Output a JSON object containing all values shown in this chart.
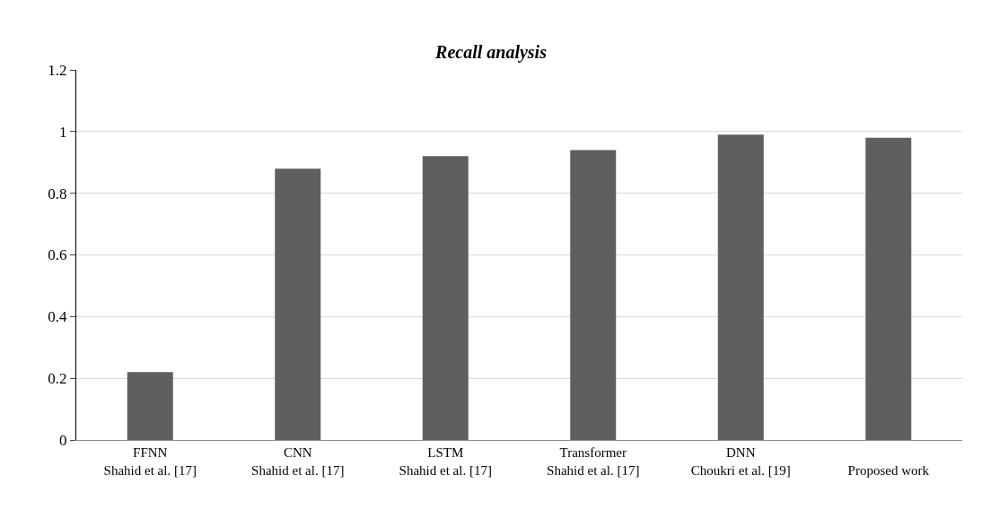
{
  "chart_data": {
    "type": "bar",
    "title": "Recall analysis",
    "categories": [
      "FFNN\nShahid et al. [17]",
      "CNN\nShahid et al. [17]",
      "LSTM\nShahid et al. [17]",
      "Transformer\nShahid et al. [17]",
      "DNN\nChoukri et al. [19]",
      "\nProposed work"
    ],
    "values": [
      0.22,
      0.88,
      0.92,
      0.94,
      0.99,
      0.98
    ],
    "color": "#5f5f5f",
    "ylim": [
      0,
      1.2
    ],
    "yticks": [
      0,
      0.2,
      0.4,
      0.6,
      0.8,
      1,
      1.2
    ],
    "grid": "y"
  }
}
